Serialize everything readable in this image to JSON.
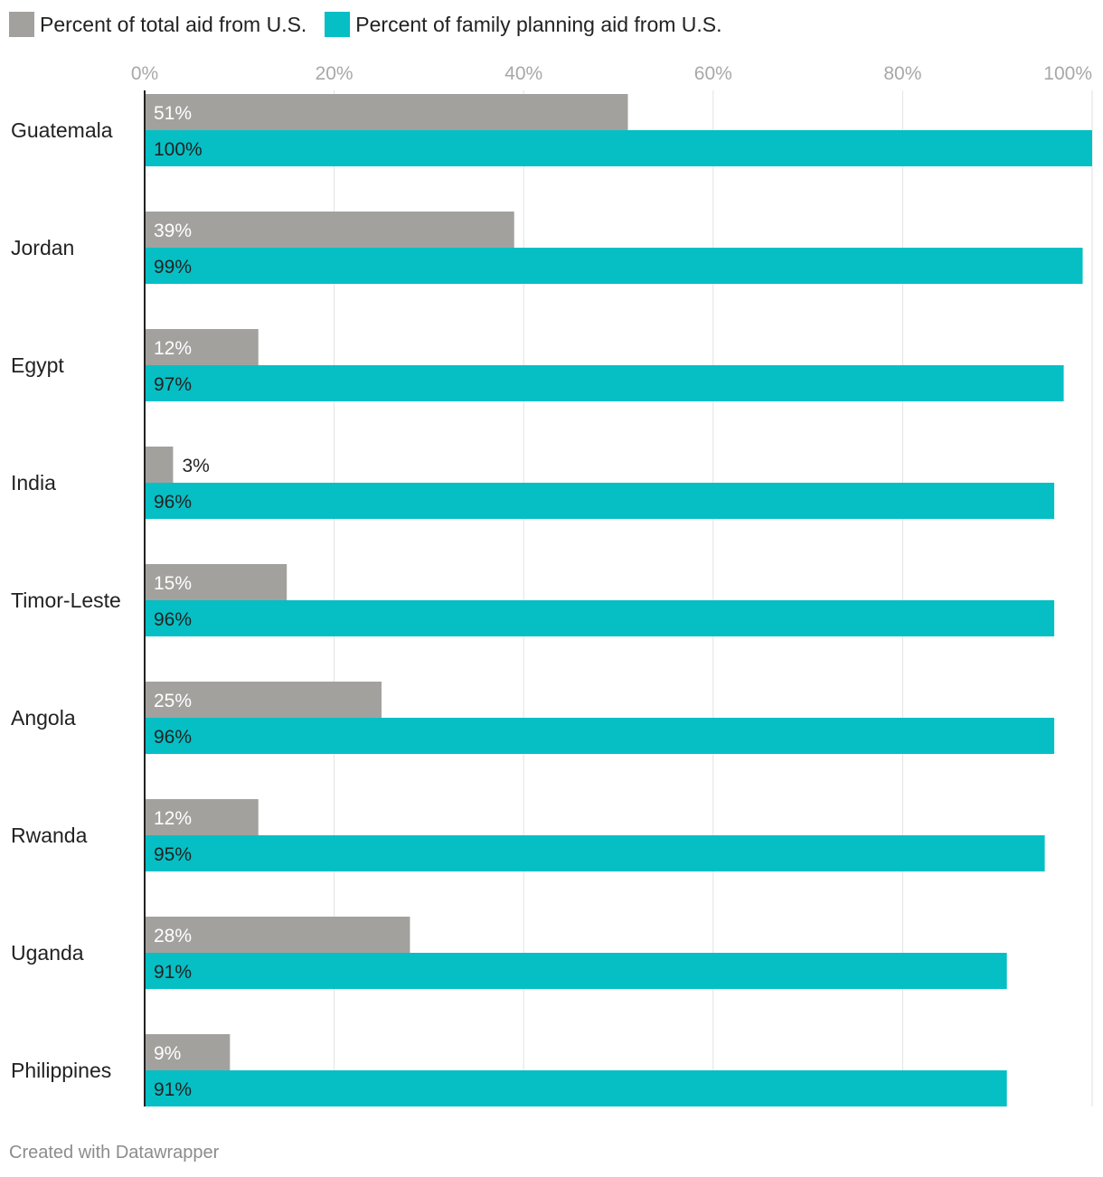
{
  "chart_data": {
    "type": "bar",
    "orientation": "horizontal",
    "categories": [
      "Guatemala",
      "Jordan",
      "Egypt",
      "India",
      "Timor-Leste",
      "Angola",
      "Rwanda",
      "Uganda",
      "Philippines"
    ],
    "series": [
      {
        "name": "Percent of total aid from U.S.",
        "color": "#a3a19e",
        "values": [
          51,
          39,
          12,
          3,
          15,
          25,
          12,
          28,
          9
        ],
        "labels": [
          "51%",
          "39%",
          "12%",
          "3%",
          "15%",
          "25%",
          "12%",
          "28%",
          "9%"
        ]
      },
      {
        "name": "Percent of family planning aid from U.S.",
        "color": "#05bfc5",
        "values": [
          100,
          99,
          97,
          96,
          96,
          96,
          95,
          91,
          91
        ],
        "labels": [
          "100%",
          "99%",
          "97%",
          "96%",
          "96%",
          "96%",
          "95%",
          "91%",
          "91%"
        ]
      }
    ],
    "xlim": [
      0,
      100
    ],
    "xticks": [
      0,
      20,
      40,
      60,
      80,
      100
    ],
    "xtick_labels": [
      "0%",
      "20%",
      "40%",
      "60%",
      "80%",
      "100%"
    ],
    "axis_position": "top",
    "grid": true,
    "legend": "top-left"
  },
  "footer": "Created with Datawrapper"
}
